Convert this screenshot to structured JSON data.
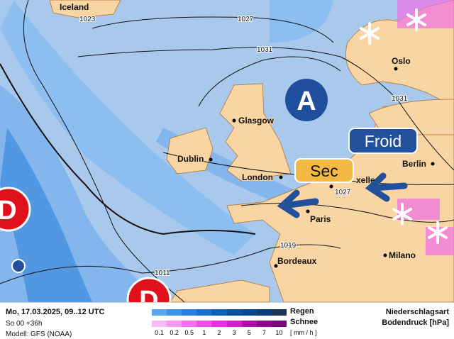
{
  "map": {
    "cities": [
      {
        "name": "Iceland"
      },
      {
        "name": "Oslo"
      },
      {
        "name": "Glasgow"
      },
      {
        "name": "Dublin"
      },
      {
        "name": "London"
      },
      {
        "name": "Paris"
      },
      {
        "name": "Berlin"
      },
      {
        "name": "Bordeaux"
      },
      {
        "name": "Milano"
      },
      {
        "name": "xelles"
      }
    ],
    "isobars": [
      "1027",
      "1031",
      "1031",
      "1027",
      "1019",
      "1011",
      "1023"
    ],
    "high_label": "A",
    "low_label": "D",
    "callouts": {
      "cold": "Froid",
      "dry": "Sec"
    },
    "colors": {
      "sea": "#a9c9ec",
      "land": "#f8d5a2",
      "rain": "#3b88e0",
      "snow": "#f040e0",
      "high": "#1f4f9c",
      "low": "#e0101c",
      "sec": "#f3b944",
      "froid": "#23509a"
    }
  },
  "legend": {
    "date": "Mo, 17.03.2025, 09..12 UTC",
    "run": "So 00 +36h",
    "model": "Modell: GFS (NOAA)",
    "rain": "Regen",
    "snow": "Schnee",
    "unit": "[ mm / h ]",
    "ticks": [
      "0.1",
      "0.2",
      "0.5",
      "1",
      "2",
      "3",
      "5",
      "7",
      "10"
    ],
    "title1": "Niederschlagsart",
    "title2": "Bodendruck [hPa]",
    "rain_colors": [
      "#5aa8f0",
      "#3c94ea",
      "#2a80dc",
      "#1a70cc",
      "#0f60b8",
      "#0a52a0",
      "#064890",
      "#0a3c78",
      "#1c3458"
    ],
    "snow_colors": [
      "#f8b8f0",
      "#f898f0",
      "#f470ec",
      "#f050e8",
      "#e830e0",
      "#d020c8",
      "#b010a8",
      "#900888",
      "#780878"
    ]
  }
}
